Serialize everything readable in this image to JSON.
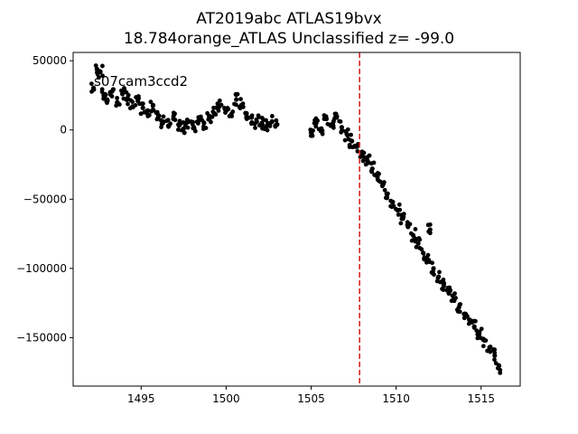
{
  "chart_data": {
    "type": "scatter",
    "title_line1": "AT2019abc  ATLAS19bvx",
    "title_line2": "18.784orange_ATLAS Unclassified z= -99.0",
    "annotation": "s07cam3ccd2",
    "xlabel": "",
    "ylabel": "",
    "xlim": [
      1491.0,
      1517.3
    ],
    "ylim": [
      -185000,
      56000
    ],
    "x_ticks": [
      1495,
      1500,
      1505,
      1510,
      1515
    ],
    "x_tick_labels": [
      "1495",
      "1500",
      "1505",
      "1510",
      "1515"
    ],
    "y_ticks": [
      50000,
      0,
      -50000,
      -100000,
      -150000
    ],
    "y_tick_labels": [
      "50000",
      "0",
      "−50000",
      "−100000",
      "−150000"
    ],
    "vline": {
      "x": 1507.85,
      "style": "dashed",
      "color": "#d62728"
    },
    "marker_color": "#000000",
    "grid": false,
    "series": [
      {
        "points": [
          [
            1492.2,
            30000
          ],
          [
            1492.4,
            44000
          ],
          [
            1492.6,
            42000
          ],
          [
            1492.8,
            25000
          ],
          [
            1493.0,
            22000
          ],
          [
            1493.3,
            28000
          ],
          [
            1493.6,
            20000
          ],
          [
            1493.9,
            26000
          ],
          [
            1494.2,
            23000
          ],
          [
            1494.5,
            17000
          ],
          [
            1494.8,
            21000
          ],
          [
            1495.1,
            16000
          ],
          [
            1495.4,
            14000
          ],
          [
            1495.7,
            18000
          ],
          [
            1496.0,
            9000
          ],
          [
            1496.3,
            6000
          ],
          [
            1496.6,
            3000
          ],
          [
            1496.9,
            8000
          ],
          [
            1497.2,
            4000
          ],
          [
            1497.5,
            1000
          ],
          [
            1497.8,
            6000
          ],
          [
            1498.1,
            2000
          ],
          [
            1498.4,
            9000
          ],
          [
            1498.7,
            5000
          ],
          [
            1499.0,
            10000
          ],
          [
            1499.3,
            12000
          ],
          [
            1499.6,
            17000
          ],
          [
            1500.0,
            14000
          ],
          [
            1500.3,
            11000
          ],
          [
            1500.6,
            22000
          ],
          [
            1500.9,
            18000
          ],
          [
            1501.2,
            12000
          ],
          [
            1501.5,
            9000
          ],
          [
            1501.8,
            6000
          ],
          [
            1502.1,
            5000
          ],
          [
            1502.4,
            3000
          ],
          [
            1502.7,
            6000
          ],
          [
            1503.0,
            4000
          ],
          [
            1505.0,
            -2000
          ],
          [
            1505.3,
            5000
          ],
          [
            1505.6,
            1000
          ],
          [
            1505.9,
            8000
          ],
          [
            1506.2,
            4000
          ],
          [
            1506.5,
            9000
          ],
          [
            1506.8,
            2000
          ],
          [
            1507.1,
            -3000
          ],
          [
            1507.4,
            -8000
          ],
          [
            1507.7,
            -12000
          ],
          [
            1508.0,
            -18000
          ],
          [
            1508.3,
            -22000
          ],
          [
            1508.6,
            -28000
          ],
          [
            1508.9,
            -34000
          ],
          [
            1509.2,
            -40000
          ],
          [
            1509.5,
            -46000
          ],
          [
            1509.8,
            -52000
          ],
          [
            1510.1,
            -58000
          ],
          [
            1510.4,
            -64000
          ],
          [
            1510.7,
            -70000
          ],
          [
            1511.0,
            -76000
          ],
          [
            1511.3,
            -82000
          ],
          [
            1511.6,
            -89000
          ],
          [
            1511.9,
            -94000
          ],
          [
            1512.2,
            -100000
          ],
          [
            1512.5,
            -106000
          ],
          [
            1512.8,
            -112000
          ],
          [
            1513.1,
            -118000
          ],
          [
            1513.4,
            -122000
          ],
          [
            1513.7,
            -128000
          ],
          [
            1514.0,
            -133000
          ],
          [
            1514.3,
            -137000
          ],
          [
            1514.6,
            -142000
          ],
          [
            1514.9,
            -146000
          ],
          [
            1515.2,
            -152000
          ],
          [
            1515.5,
            -157000
          ],
          [
            1515.8,
            -163000
          ],
          [
            1516.0,
            -172000
          ],
          [
            1512.0,
            -72000
          ]
        ]
      }
    ]
  }
}
